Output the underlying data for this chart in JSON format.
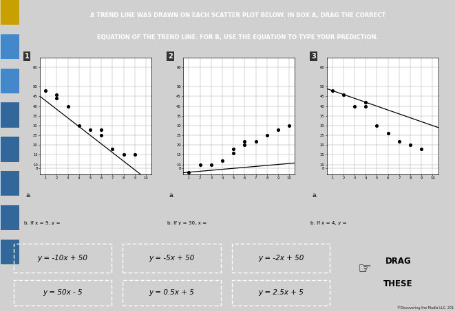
{
  "title_line1": "A TREND LINE WAS DRAWN ON EACH SCATTER PLOT BELOW. IN BOX A, DRAG THE CORRECT",
  "title_line2": "EQUATION OF THE TREND LINE. FOR B, USE THE EQUATION TO TYPE YOUR PREDICTION.",
  "header_bg": "#1c1c1c",
  "panel_bg": "#f0c020",
  "plot_bg": "#ffffff",
  "bottom_bg": "#2ab4e8",
  "fig_bg": "#d0d0d0",
  "sidebar_bg": "#c8c8c8",
  "plot_numbers": [
    "1",
    "2",
    "3"
  ],
  "scatter1_x": [
    1,
    2,
    2,
    3,
    4,
    5,
    6,
    6,
    7,
    8,
    9
  ],
  "scatter1_y": [
    48,
    46,
    44,
    40,
    30,
    28,
    25,
    28,
    18,
    15,
    15
  ],
  "scatter2_x": [
    1,
    2,
    3,
    4,
    5,
    5,
    6,
    6,
    7,
    8,
    9,
    10
  ],
  "scatter2_y": [
    6,
    10,
    10,
    12,
    16,
    18,
    20,
    22,
    22,
    25,
    28,
    30
  ],
  "scatter3_x": [
    1,
    2,
    3,
    4,
    4,
    5,
    6,
    7,
    8,
    9
  ],
  "scatter3_y": [
    48,
    46,
    40,
    40,
    42,
    30,
    26,
    22,
    20,
    18
  ],
  "trend1_x": [
    0.5,
    9.5
  ],
  "trend1_y": [
    45,
    5
  ],
  "trend2_x": [
    0.5,
    10.5
  ],
  "trend2_y": [
    5.75,
    10.75
  ],
  "trend3_x": [
    0.5,
    10.5
  ],
  "trend3_y": [
    49,
    29
  ],
  "yticks": [
    8,
    10,
    15,
    20,
    25,
    30,
    35,
    40,
    45,
    50,
    60
  ],
  "xticks": [
    1,
    2,
    3,
    4,
    5,
    6,
    7,
    8,
    9,
    10
  ],
  "ymin": 5,
  "ymax": 65,
  "xmin": 0.5,
  "xmax": 10.5,
  "label_b": [
    "b. If x = 9, y =",
    "b. If y = 30, x =",
    "b. If x = 4, y ="
  ],
  "eq_col1_top": "y = -10x + 50",
  "eq_col1_bot": "y = 50x - 5",
  "eq_col2_top": "y = -5x + 50",
  "eq_col2_bot": "y = 0.5x + 5",
  "eq_col3_top": "y = -2x + 50",
  "eq_col3_bot": "y = 2.5x + 5",
  "drag_text": "DRAG\nTHESE",
  "copyright": "©Discovering the Mudla LLC. 201"
}
